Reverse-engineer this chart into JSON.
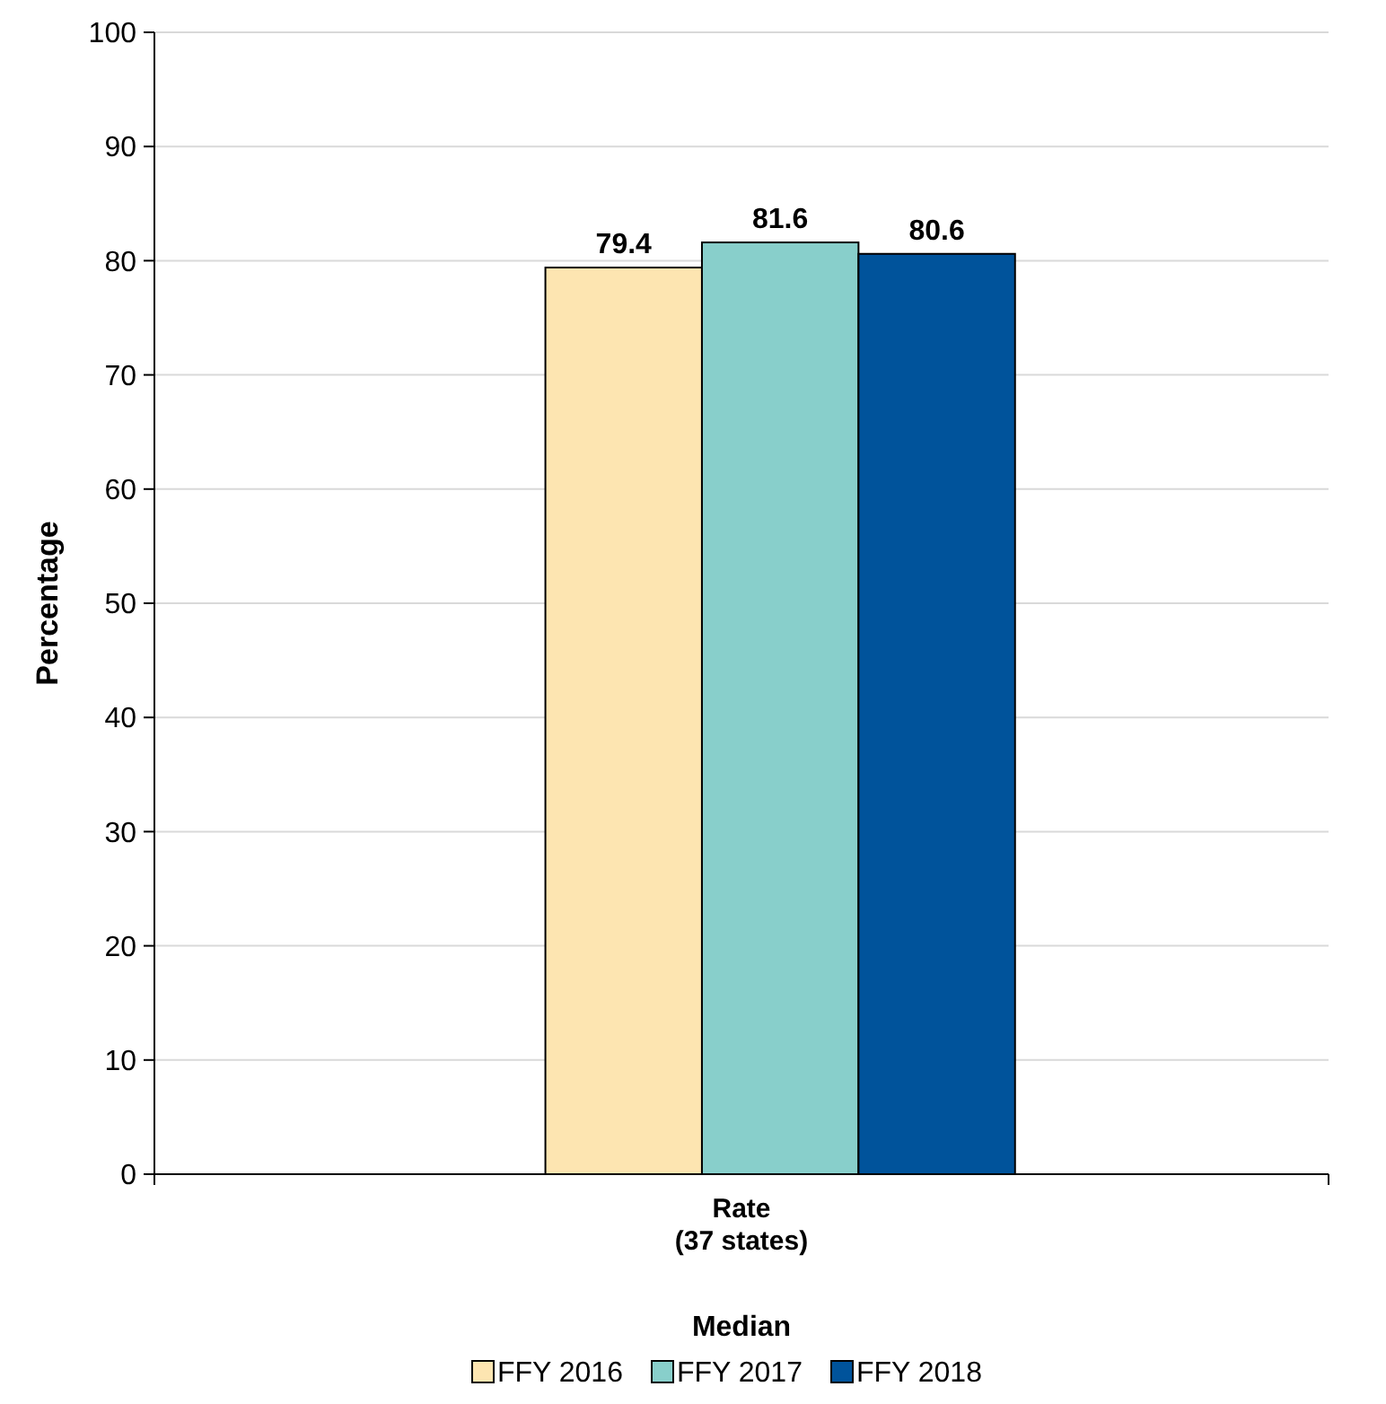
{
  "chart_data": {
    "type": "bar",
    "ylabel": "Percentage",
    "legend_title": "Median",
    "categories": [
      "Rate\n(37 states)"
    ],
    "series": [
      {
        "name": "FFY 2016",
        "color": "#fde5b1",
        "values": [
          79.4
        ]
      },
      {
        "name": "FFY 2017",
        "color": "#88cfcb",
        "values": [
          81.6
        ]
      },
      {
        "name": "FFY 2018",
        "color": "#00539b",
        "values": [
          80.6
        ]
      }
    ],
    "ylim": [
      0,
      100
    ],
    "yticks": [
      0,
      10,
      20,
      30,
      40,
      50,
      60,
      70,
      80,
      90,
      100
    ],
    "grid": "y",
    "legend": "bottom",
    "data_labels": true
  }
}
